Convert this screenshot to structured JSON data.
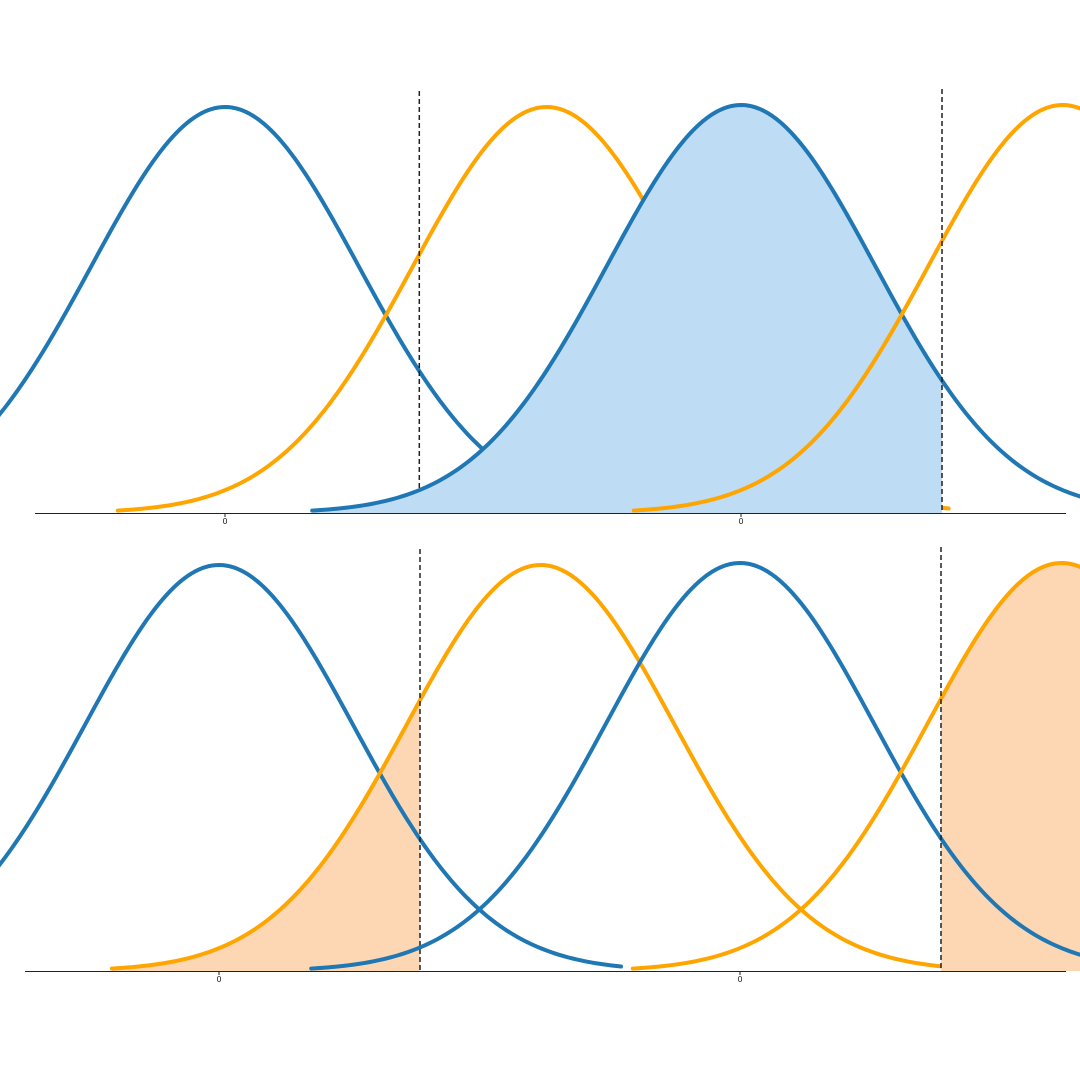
{
  "chart_data": [
    {
      "type": "area",
      "position": "top-left",
      "xticks": [
        0
      ],
      "xtick_labels": [
        "0"
      ],
      "xlim": [
        -3.2,
        5.6
      ],
      "threshold": 1.45,
      "shade": "none",
      "series": [
        {
          "mean": 0,
          "sd": 1,
          "x_range": [
            -3.2,
            3.0
          ],
          "color": "#1f77b4"
        },
        {
          "mean": 2.4,
          "sd": 1,
          "x_range": [
            -0.8,
            5.4
          ],
          "color": "#ffa500"
        }
      ]
    },
    {
      "type": "area",
      "position": "top-right",
      "xticks": [
        0
      ],
      "xtick_labels": [
        "0"
      ],
      "xlim": [
        -3.2,
        5.6
      ],
      "threshold": 1.5,
      "shade": "blue-left-of-threshold",
      "shade_color": "#bedcf4",
      "series": [
        {
          "mean": 0,
          "sd": 1,
          "x_range": [
            -3.2,
            3.0
          ],
          "color": "#1f77b4"
        },
        {
          "mean": 2.4,
          "sd": 1,
          "x_range": [
            -0.8,
            5.4
          ],
          "color": "#ffa500"
        }
      ]
    },
    {
      "type": "area",
      "position": "bottom-left",
      "xticks": [
        0
      ],
      "xtick_labels": [
        "0"
      ],
      "xlim": [
        -3.2,
        5.6
      ],
      "threshold": 1.5,
      "shade": "orange-left-of-threshold",
      "shade_color": "#fdd7b3",
      "series": [
        {
          "mean": 0,
          "sd": 1,
          "x_range": [
            -3.2,
            3.0
          ],
          "color": "#1f77b4"
        },
        {
          "mean": 2.4,
          "sd": 1,
          "x_range": [
            -0.8,
            5.4
          ],
          "color": "#ffa500"
        }
      ]
    },
    {
      "type": "area",
      "position": "bottom-right",
      "xticks": [
        0
      ],
      "xtick_labels": [
        "0"
      ],
      "xlim": [
        -3.2,
        5.6
      ],
      "threshold": 1.5,
      "shade": "orange-right-of-threshold",
      "shade_color": "#fdd7b3",
      "series": [
        {
          "mean": 0,
          "sd": 1,
          "x_range": [
            -3.2,
            3.0
          ],
          "color": "#1f77b4"
        },
        {
          "mean": 2.4,
          "sd": 1,
          "x_range": [
            -0.8,
            5.4
          ],
          "color": "#ffa500"
        }
      ]
    }
  ]
}
